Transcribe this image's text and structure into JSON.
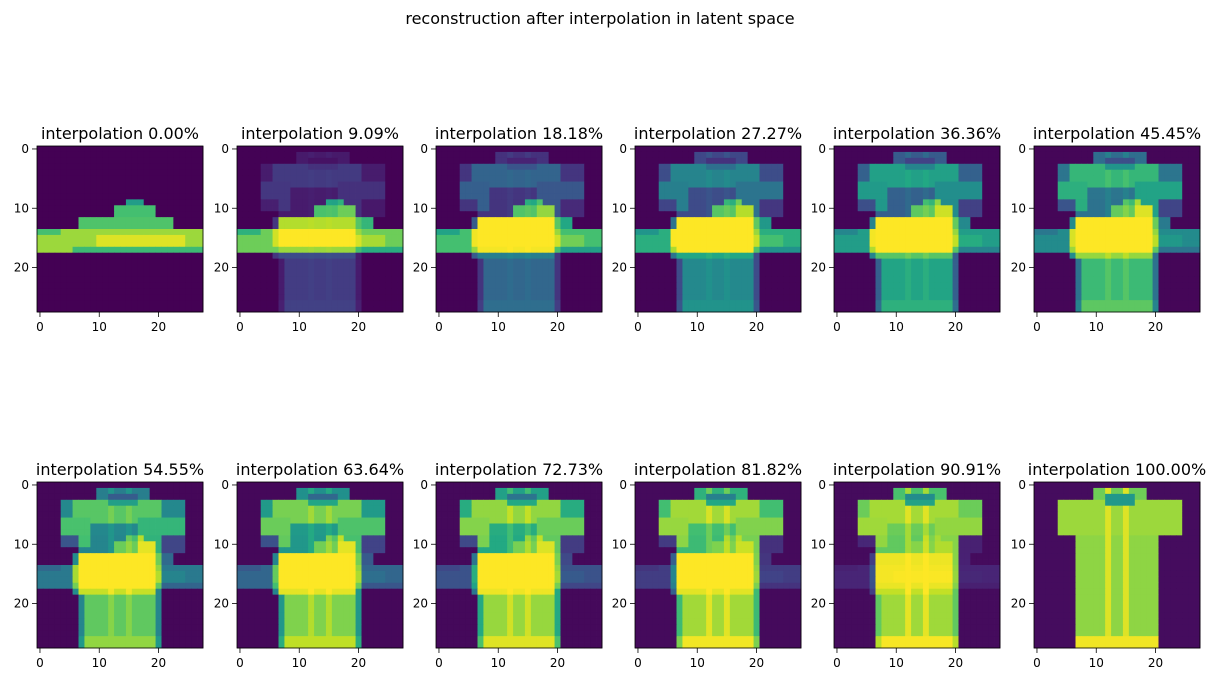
{
  "chart_data": {
    "type": "heatmap",
    "title": "reconstruction after interpolation in latent space",
    "colormap": "viridis",
    "image_size": [
      28,
      28
    ],
    "x_ticks": [
      0,
      10,
      20
    ],
    "y_ticks": [
      0,
      10,
      20
    ],
    "xlim": [
      -0.5,
      27.5
    ],
    "ylim": [
      27.5,
      -0.5
    ],
    "grid": false,
    "panels": [
      {
        "title": "interpolation 0.00%",
        "t": 0.0
      },
      {
        "title": "interpolation 9.09%",
        "t": 0.0909
      },
      {
        "title": "interpolation 18.18%",
        "t": 0.1818
      },
      {
        "title": "interpolation 27.27%",
        "t": 0.2727
      },
      {
        "title": "interpolation 36.36%",
        "t": 0.3636
      },
      {
        "title": "interpolation 45.45%",
        "t": 0.4545
      },
      {
        "title": "interpolation 54.55%",
        "t": 0.5455
      },
      {
        "title": "interpolation 63.64%",
        "t": 0.6364
      },
      {
        "title": "interpolation 72.73%",
        "t": 0.7273
      },
      {
        "title": "interpolation 81.82%",
        "t": 0.8182
      },
      {
        "title": "interpolation 90.91%",
        "t": 0.9091
      },
      {
        "title": "interpolation 100.00%",
        "t": 1.0
      }
    ]
  }
}
